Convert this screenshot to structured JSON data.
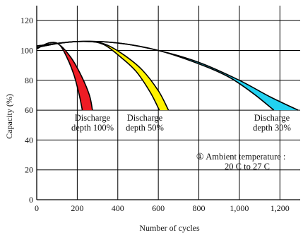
{
  "chart_data": {
    "type": "area",
    "title": "",
    "xlabel": "Number of cycles",
    "ylabel": "Capacity (%)",
    "xlim": [
      0,
      1300
    ],
    "ylim": [
      0,
      130
    ],
    "x_ticks": [
      0,
      200,
      400,
      600,
      800,
      1000,
      1200
    ],
    "x_tick_labels": [
      "0",
      "200",
      "400",
      "600",
      "800",
      "1,000",
      "1,200"
    ],
    "y_ticks": [
      0,
      20,
      40,
      60,
      80,
      100,
      120
    ],
    "y_tick_labels": [
      "0",
      "20",
      "40",
      "60",
      "80",
      "100",
      "120"
    ],
    "grid": true,
    "legend": "none",
    "series": [
      {
        "label_lines": [
          "Discharge",
          "depth 100%"
        ],
        "color": "#ee1c25",
        "upper": [
          [
            0,
            101
          ],
          [
            60,
            105
          ],
          [
            110,
            104
          ],
          [
            170,
            95
          ],
          [
            220,
            83
          ],
          [
            260,
            70
          ],
          [
            275,
            60
          ]
        ],
        "lower": [
          [
            0,
            101
          ],
          [
            60,
            105
          ],
          [
            110,
            104
          ],
          [
            150,
            95
          ],
          [
            185,
            83
          ],
          [
            210,
            70
          ],
          [
            225,
            60
          ]
        ]
      },
      {
        "label_lines": [
          "Discharge",
          "depth 50%"
        ],
        "color": "#fff200",
        "upper": [
          [
            0,
            102
          ],
          [
            120,
            105
          ],
          [
            250,
            106
          ],
          [
            340,
            104
          ],
          [
            430,
            97
          ],
          [
            520,
            87
          ],
          [
            600,
            73
          ],
          [
            650,
            60
          ]
        ],
        "lower": [
          [
            0,
            102
          ],
          [
            120,
            105
          ],
          [
            250,
            106
          ],
          [
            330,
            104
          ],
          [
            410,
            96
          ],
          [
            490,
            86
          ],
          [
            560,
            72
          ],
          [
            605,
            60
          ]
        ]
      },
      {
        "label_lines": [
          "Discharge",
          "depth 30%"
        ],
        "color": "#22d1f0",
        "upper": [
          [
            0,
            103
          ],
          [
            200,
            106
          ],
          [
            400,
            105
          ],
          [
            600,
            100
          ],
          [
            800,
            92
          ],
          [
            1000,
            80
          ],
          [
            1150,
            69
          ],
          [
            1290,
            60
          ]
        ],
        "lower": [
          [
            0,
            103
          ],
          [
            200,
            106
          ],
          [
            400,
            105
          ],
          [
            600,
            100
          ],
          [
            800,
            91
          ],
          [
            950,
            82
          ],
          [
            1070,
            71
          ],
          [
            1170,
            60
          ]
        ]
      }
    ],
    "annotations": [
      {
        "lines": [
          "① Ambient temperature :",
          "20 C to 27 C"
        ]
      }
    ]
  }
}
